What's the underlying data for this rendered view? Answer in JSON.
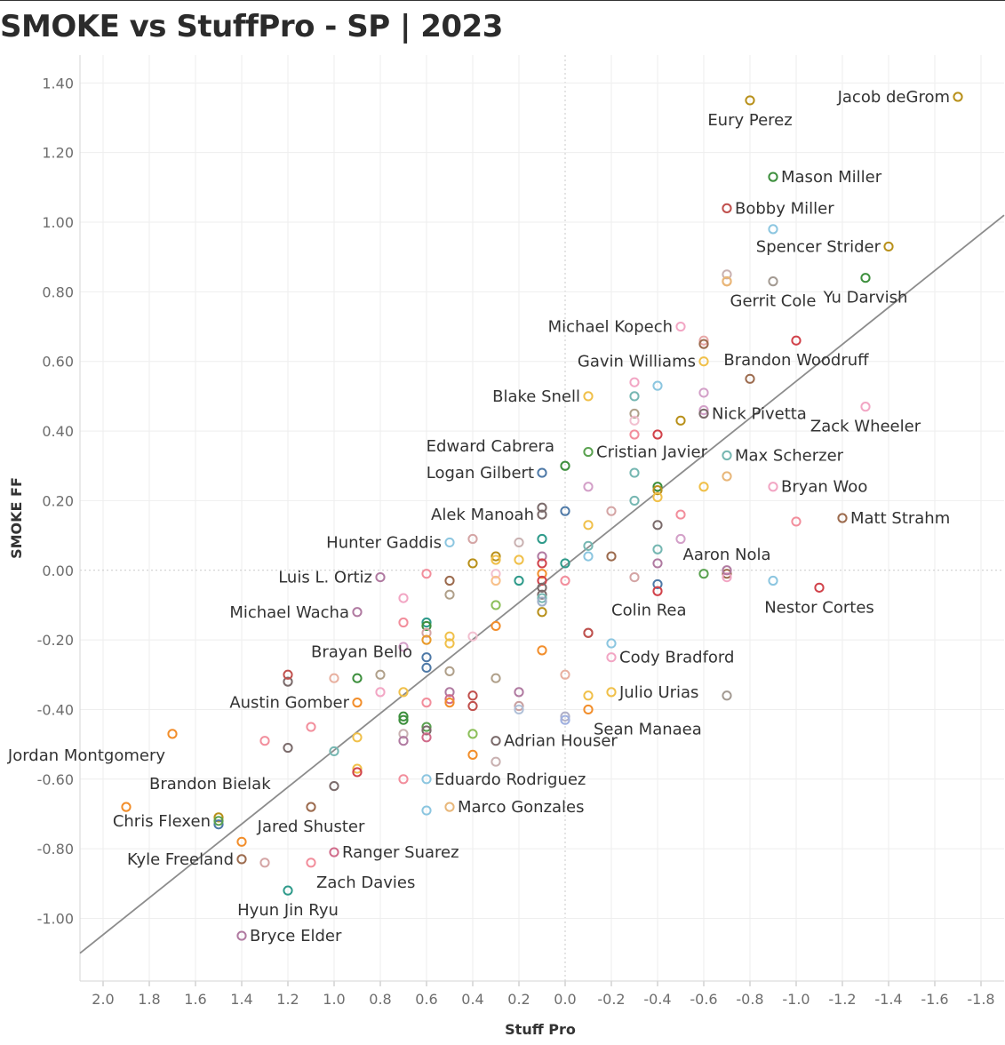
{
  "chart_data": {
    "type": "scatter",
    "title": "SMOKE vs StuffPro - SP | 2023",
    "xlabel": "Stuff Pro",
    "ylabel": "SMOKE FF",
    "x_reversed": true,
    "xlim": [
      2.1,
      -1.9
    ],
    "ylim": [
      -1.18,
      1.48
    ],
    "x_ticks": [
      "2.0",
      "1.8",
      "1.6",
      "1.4",
      "1.2",
      "1.0",
      "0.8",
      "0.6",
      "0.4",
      "0.2",
      "0.0",
      "-0.2",
      "-0.4",
      "-0.6",
      "-0.8",
      "-1.0",
      "-1.2",
      "-1.4",
      "-1.6",
      "-1.8"
    ],
    "y_ticks": [
      "1.40",
      "1.20",
      "1.00",
      "0.80",
      "0.60",
      "0.40",
      "0.20",
      "0.00",
      "-0.20",
      "-0.40",
      "-0.60",
      "-0.80",
      "-1.00"
    ],
    "gridlines": true,
    "trendline": {
      "x1": 2.1,
      "y1": -1.1,
      "x2": -1.9,
      "y2": 1.02
    },
    "labeled_points": [
      {
        "name": "Jacob deGrom",
        "x": -1.7,
        "y": 1.36,
        "color": "#b8901a",
        "label_pos": "left"
      },
      {
        "name": "Eury Perez",
        "x": -0.8,
        "y": 1.35,
        "color": "#b8901a",
        "label_pos": "below"
      },
      {
        "name": "Mason Miller",
        "x": -0.9,
        "y": 1.13,
        "color": "#3d8f3d",
        "label_pos": "right"
      },
      {
        "name": "Bobby Miller",
        "x": -0.7,
        "y": 1.04,
        "color": "#c0504d",
        "label_pos": "right"
      },
      {
        "name": "Spencer Strider",
        "x": -1.4,
        "y": 0.93,
        "color": "#b8901a",
        "label_pos": "left"
      },
      {
        "name": "Yu Darvish",
        "x": -1.3,
        "y": 0.84,
        "color": "#3d8f3d",
        "label_pos": "below"
      },
      {
        "name": "Gerrit Cole",
        "x": -0.9,
        "y": 0.83,
        "color": "#a39a92",
        "label_pos": "below"
      },
      {
        "name": "Michael Kopech",
        "x": -0.5,
        "y": 0.7,
        "color": "#f2a6c4",
        "label_pos": "left"
      },
      {
        "name": "Brandon Woodruff",
        "x": -1.0,
        "y": 0.66,
        "color": "#d1424a",
        "label_pos": "below"
      },
      {
        "name": "Gavin Williams",
        "x": -0.6,
        "y": 0.6,
        "color": "#f0c04a",
        "label_pos": "left"
      },
      {
        "name": "Blake Snell",
        "x": -0.1,
        "y": 0.5,
        "color": "#f0c04a",
        "label_pos": "left"
      },
      {
        "name": "Nick Pivetta",
        "x": -0.6,
        "y": 0.45,
        "color": "#7a6a6a",
        "label_pos": "right"
      },
      {
        "name": "Zack Wheeler",
        "x": -1.3,
        "y": 0.47,
        "color": "#f2a6c4",
        "label_pos": "below"
      },
      {
        "name": "Edward Cabrera",
        "x": 0.0,
        "y": 0.3,
        "color": "#3d8f3d",
        "label_pos": "above-left"
      },
      {
        "name": "Cristian Javier",
        "x": -0.1,
        "y": 0.34,
        "color": "#59a14f",
        "label_pos": "right"
      },
      {
        "name": "Max Scherzer",
        "x": -0.7,
        "y": 0.33,
        "color": "#76b7b2",
        "label_pos": "right"
      },
      {
        "name": "Logan Gilbert",
        "x": 0.1,
        "y": 0.28,
        "color": "#4e79a7",
        "label_pos": "left"
      },
      {
        "name": "Bryan Woo",
        "x": -0.9,
        "y": 0.24,
        "color": "#f2a6c4",
        "label_pos": "right"
      },
      {
        "name": "Alek Manoah",
        "x": 0.1,
        "y": 0.16,
        "color": "#7a6a6a",
        "label_pos": "left"
      },
      {
        "name": "Matt Strahm",
        "x": -1.2,
        "y": 0.15,
        "color": "#9c6b4e",
        "label_pos": "right"
      },
      {
        "name": "Hunter Gaddis",
        "x": 0.5,
        "y": 0.08,
        "color": "#8cc6e0",
        "label_pos": "left"
      },
      {
        "name": "Aaron Nola",
        "x": -0.7,
        "y": 0.0,
        "color": "#b07aa1",
        "label_pos": "above"
      },
      {
        "name": "Luis L. Ortiz",
        "x": 0.8,
        "y": -0.02,
        "color": "#b07aa1",
        "label_pos": "left"
      },
      {
        "name": "Nestor Cortes",
        "x": -1.1,
        "y": -0.05,
        "color": "#d1424a",
        "label_pos": "below"
      },
      {
        "name": "Michael Wacha",
        "x": 0.9,
        "y": -0.12,
        "color": "#b07aa1",
        "label_pos": "left"
      },
      {
        "name": "Colin Rea",
        "x": -0.1,
        "y": -0.18,
        "color": "#c0504d",
        "label_pos": "above-right"
      },
      {
        "name": "Cody Bradford",
        "x": -0.2,
        "y": -0.25,
        "color": "#f2a6c4",
        "label_pos": "right"
      },
      {
        "name": "Brayan Bello",
        "x": 1.2,
        "y": -0.3,
        "color": "#c0504d",
        "label_pos": "above-right"
      },
      {
        "name": "Julio Urias",
        "x": -0.2,
        "y": -0.35,
        "color": "#f0c04a",
        "label_pos": "right"
      },
      {
        "name": "Austin Gomber",
        "x": 0.9,
        "y": -0.38,
        "color": "#f28e2b",
        "label_pos": "left"
      },
      {
        "name": "Sean Manaea",
        "x": -0.1,
        "y": -0.4,
        "color": "#f28e2b",
        "label_pos": "below-right"
      },
      {
        "name": "Adrian Houser",
        "x": 0.3,
        "y": -0.49,
        "color": "#7a6a6a",
        "label_pos": "right"
      },
      {
        "name": "Jordan Montgomery",
        "x": 1.7,
        "y": -0.47,
        "color": "#f28e2b",
        "label_pos": "below-left"
      },
      {
        "name": "Eduardo Rodriguez",
        "x": 0.6,
        "y": -0.6,
        "color": "#8cc6e0",
        "label_pos": "right"
      },
      {
        "name": "Brandon Bielak",
        "x": 1.9,
        "y": -0.68,
        "color": "#f28e2b",
        "label_pos": "above-right"
      },
      {
        "name": "Marco Gonzales",
        "x": 0.5,
        "y": -0.68,
        "color": "#e8b77a",
        "label_pos": "right"
      },
      {
        "name": "Chris Flexen",
        "x": 1.5,
        "y": -0.72,
        "color": "#59a14f",
        "label_pos": "left"
      },
      {
        "name": "Jared Shuster",
        "x": 1.1,
        "y": -0.68,
        "color": "#9c6b4e",
        "label_pos": "below"
      },
      {
        "name": "Ranger Suarez",
        "x": 1.0,
        "y": -0.81,
        "color": "#d06b8a",
        "label_pos": "right"
      },
      {
        "name": "Kyle Freeland",
        "x": 1.4,
        "y": -0.83,
        "color": "#9c6b4e",
        "label_pos": "left"
      },
      {
        "name": "Zach Davies",
        "x": 1.1,
        "y": -0.84,
        "color": "#f28e9c",
        "label_pos": "below-right"
      },
      {
        "name": "Hyun Jin Ryu",
        "x": 1.2,
        "y": -0.92,
        "color": "#2e9a8a",
        "label_pos": "below"
      },
      {
        "name": "Bryce Elder",
        "x": 1.4,
        "y": -1.05,
        "color": "#b07aa1",
        "label_pos": "right"
      }
    ],
    "unlabeled_points": [
      {
        "x": -0.9,
        "y": 0.98,
        "color": "#8cc6e0"
      },
      {
        "x": -0.7,
        "y": 0.85,
        "color": "#c9b1b1"
      },
      {
        "x": -0.7,
        "y": 0.83,
        "color": "#f28e2b"
      },
      {
        "x": -0.7,
        "y": 0.83,
        "color": "#e8b77a"
      },
      {
        "x": -0.6,
        "y": 0.66,
        "color": "#e8a8a8"
      },
      {
        "x": -0.6,
        "y": 0.65,
        "color": "#9c6b4e"
      },
      {
        "x": -0.8,
        "y": 0.55,
        "color": "#9c6b4e"
      },
      {
        "x": -0.3,
        "y": 0.54,
        "color": "#f2a6c4"
      },
      {
        "x": -0.4,
        "y": 0.53,
        "color": "#8cc6e0"
      },
      {
        "x": -0.3,
        "y": 0.5,
        "color": "#76b7b2"
      },
      {
        "x": -0.6,
        "y": 0.51,
        "color": "#d3a0c8"
      },
      {
        "x": -0.3,
        "y": 0.45,
        "color": "#b0a08a"
      },
      {
        "x": -0.3,
        "y": 0.43,
        "color": "#f2c0d0"
      },
      {
        "x": -0.5,
        "y": 0.43,
        "color": "#b8901a"
      },
      {
        "x": -0.6,
        "y": 0.46,
        "color": "#d3a0c8"
      },
      {
        "x": -0.3,
        "y": 0.39,
        "color": "#f28e9c"
      },
      {
        "x": -0.4,
        "y": 0.39,
        "color": "#d1424a"
      },
      {
        "x": -0.3,
        "y": 0.28,
        "color": "#76b7b2"
      },
      {
        "x": -0.7,
        "y": 0.27,
        "color": "#e8b77a"
      },
      {
        "x": -0.1,
        "y": 0.24,
        "color": "#d3a0c8"
      },
      {
        "x": -0.4,
        "y": 0.24,
        "color": "#3d8f3d"
      },
      {
        "x": -0.4,
        "y": 0.23,
        "color": "#b8901a"
      },
      {
        "x": -0.6,
        "y": 0.24,
        "color": "#f0c04a"
      },
      {
        "x": -0.4,
        "y": 0.21,
        "color": "#f0c04a"
      },
      {
        "x": -0.3,
        "y": 0.2,
        "color": "#76b7b2"
      },
      {
        "x": 0.1,
        "y": 0.18,
        "color": "#7a6a6a"
      },
      {
        "x": 0.0,
        "y": 0.17,
        "color": "#4e79a7"
      },
      {
        "x": -0.2,
        "y": 0.17,
        "color": "#d4a5a5"
      },
      {
        "x": -0.5,
        "y": 0.16,
        "color": "#f28e9c"
      },
      {
        "x": -1.0,
        "y": 0.14,
        "color": "#f28e9c"
      },
      {
        "x": -0.1,
        "y": 0.13,
        "color": "#f0c04a"
      },
      {
        "x": -0.4,
        "y": 0.13,
        "color": "#7a6a6a"
      },
      {
        "x": 0.4,
        "y": 0.09,
        "color": "#d4a5a5"
      },
      {
        "x": 0.2,
        "y": 0.08,
        "color": "#c9b1b1"
      },
      {
        "x": 0.1,
        "y": 0.09,
        "color": "#2e9a8a"
      },
      {
        "x": -0.5,
        "y": 0.09,
        "color": "#d3a0c8"
      },
      {
        "x": -0.1,
        "y": 0.07,
        "color": "#76b7b2"
      },
      {
        "x": -0.4,
        "y": 0.06,
        "color": "#76b7b2"
      },
      {
        "x": -0.2,
        "y": 0.04,
        "color": "#9c6b4e"
      },
      {
        "x": -0.1,
        "y": 0.04,
        "color": "#8cc6e0"
      },
      {
        "x": 0.3,
        "y": 0.04,
        "color": "#b8901a"
      },
      {
        "x": 0.3,
        "y": 0.03,
        "color": "#f0c04a"
      },
      {
        "x": 0.4,
        "y": 0.02,
        "color": "#b8901a"
      },
      {
        "x": 0.2,
        "y": 0.03,
        "color": "#f0c04a"
      },
      {
        "x": 0.1,
        "y": 0.04,
        "color": "#b07aa1"
      },
      {
        "x": 0.1,
        "y": 0.02,
        "color": "#d1424a"
      },
      {
        "x": 0.0,
        "y": 0.02,
        "color": "#2e9a8a"
      },
      {
        "x": -0.4,
        "y": 0.02,
        "color": "#b07aa1"
      },
      {
        "x": 0.6,
        "y": -0.01,
        "color": "#f28e9c"
      },
      {
        "x": 0.3,
        "y": -0.01,
        "color": "#f2c0d0"
      },
      {
        "x": 0.1,
        "y": -0.01,
        "color": "#f28e2b"
      },
      {
        "x": -0.3,
        "y": -0.02,
        "color": "#d4a5a5"
      },
      {
        "x": -0.6,
        "y": -0.01,
        "color": "#59a14f"
      },
      {
        "x": -0.7,
        "y": -0.01,
        "color": "#9c6b4e"
      },
      {
        "x": -0.7,
        "y": -0.02,
        "color": "#f2a6c4"
      },
      {
        "x": 0.5,
        "y": -0.03,
        "color": "#9c6b4e"
      },
      {
        "x": 0.3,
        "y": -0.03,
        "color": "#f8c08a"
      },
      {
        "x": 0.2,
        "y": -0.03,
        "color": "#2e9a8a"
      },
      {
        "x": 0.1,
        "y": -0.03,
        "color": "#d1424a"
      },
      {
        "x": 0.0,
        "y": -0.03,
        "color": "#f28e9c"
      },
      {
        "x": -0.4,
        "y": -0.04,
        "color": "#4e79a7"
      },
      {
        "x": -0.9,
        "y": -0.03,
        "color": "#8cc6e0"
      },
      {
        "x": 0.1,
        "y": -0.05,
        "color": "#7a6a6a"
      },
      {
        "x": -0.4,
        "y": -0.06,
        "color": "#d1424a"
      },
      {
        "x": 0.1,
        "y": -0.07,
        "color": "#7a6a6a"
      },
      {
        "x": 0.5,
        "y": -0.07,
        "color": "#b0a08a"
      },
      {
        "x": 0.1,
        "y": -0.08,
        "color": "#76b7b2"
      },
      {
        "x": 0.7,
        "y": -0.08,
        "color": "#f2a6c4"
      },
      {
        "x": 0.1,
        "y": -0.09,
        "color": "#9fb0c8"
      },
      {
        "x": 0.3,
        "y": -0.1,
        "color": "#8cbf5a"
      },
      {
        "x": 0.1,
        "y": -0.12,
        "color": "#b8901a"
      },
      {
        "x": 0.7,
        "y": -0.15,
        "color": "#f28e9c"
      },
      {
        "x": 0.6,
        "y": -0.15,
        "color": "#2e9a8a"
      },
      {
        "x": 0.6,
        "y": -0.16,
        "color": "#3d8f3d"
      },
      {
        "x": 0.3,
        "y": -0.16,
        "color": "#f28e2b"
      },
      {
        "x": 0.6,
        "y": -0.18,
        "color": "#d4a5a5"
      },
      {
        "x": -0.1,
        "y": -0.18,
        "color": "#a39a92"
      },
      {
        "x": 0.4,
        "y": -0.19,
        "color": "#f2c0d0"
      },
      {
        "x": 0.5,
        "y": -0.19,
        "color": "#f0c04a"
      },
      {
        "x": 0.6,
        "y": -0.2,
        "color": "#e89a2a"
      },
      {
        "x": 0.5,
        "y": -0.21,
        "color": "#f0c04a"
      },
      {
        "x": -0.2,
        "y": -0.21,
        "color": "#8cc6e0"
      },
      {
        "x": 0.7,
        "y": -0.22,
        "color": "#d3a0c8"
      },
      {
        "x": 0.1,
        "y": -0.23,
        "color": "#f28e2b"
      },
      {
        "x": 0.6,
        "y": -0.25,
        "color": "#4e79a7"
      },
      {
        "x": 0.6,
        "y": -0.28,
        "color": "#4e79a7"
      },
      {
        "x": 0.5,
        "y": -0.29,
        "color": "#b0a08a"
      },
      {
        "x": 0.8,
        "y": -0.3,
        "color": "#b0a08a"
      },
      {
        "x": 0.0,
        "y": -0.3,
        "color": "#e8b0a0"
      },
      {
        "x": 1.0,
        "y": -0.31,
        "color": "#e8b0a0"
      },
      {
        "x": 0.9,
        "y": -0.31,
        "color": "#3d8f3d"
      },
      {
        "x": 0.3,
        "y": -0.31,
        "color": "#b0a08a"
      },
      {
        "x": 1.2,
        "y": -0.32,
        "color": "#7a6a6a"
      },
      {
        "x": 0.7,
        "y": -0.35,
        "color": "#f0c04a"
      },
      {
        "x": 0.8,
        "y": -0.35,
        "color": "#f2a6c4"
      },
      {
        "x": 0.5,
        "y": -0.35,
        "color": "#b07aa1"
      },
      {
        "x": 0.2,
        "y": -0.35,
        "color": "#b07aa1"
      },
      {
        "x": -0.1,
        "y": -0.36,
        "color": "#f0c04a"
      },
      {
        "x": -0.7,
        "y": -0.36,
        "color": "#a39a92"
      },
      {
        "x": 0.4,
        "y": -0.36,
        "color": "#c0504d"
      },
      {
        "x": 0.5,
        "y": -0.37,
        "color": "#d06b8a"
      },
      {
        "x": 0.5,
        "y": -0.38,
        "color": "#f28e2b"
      },
      {
        "x": 0.6,
        "y": -0.38,
        "color": "#f28e9c"
      },
      {
        "x": 0.4,
        "y": -0.39,
        "color": "#c0504d"
      },
      {
        "x": 0.2,
        "y": -0.39,
        "color": "#c9a0a0"
      },
      {
        "x": 0.2,
        "y": -0.4,
        "color": "#b0c0d8"
      },
      {
        "x": 0.0,
        "y": -0.42,
        "color": "#b0b0c8"
      },
      {
        "x": 0.7,
        "y": -0.42,
        "color": "#3d8f3d"
      },
      {
        "x": 0.7,
        "y": -0.43,
        "color": "#3d8f3d"
      },
      {
        "x": 0.0,
        "y": -0.43,
        "color": "#9fb0e0"
      },
      {
        "x": 0.6,
        "y": -0.45,
        "color": "#59a14f"
      },
      {
        "x": 0.6,
        "y": -0.46,
        "color": "#7a6a6a"
      },
      {
        "x": 1.1,
        "y": -0.45,
        "color": "#f28e9c"
      },
      {
        "x": 0.7,
        "y": -0.47,
        "color": "#c9b1b1"
      },
      {
        "x": 0.4,
        "y": -0.47,
        "color": "#8cbf5a"
      },
      {
        "x": 0.6,
        "y": -0.48,
        "color": "#d06b8a"
      },
      {
        "x": 0.9,
        "y": -0.48,
        "color": "#f0c04a"
      },
      {
        "x": 1.3,
        "y": -0.49,
        "color": "#f28e9c"
      },
      {
        "x": 0.7,
        "y": -0.49,
        "color": "#b07aa1"
      },
      {
        "x": 1.2,
        "y": -0.51,
        "color": "#7a6a6a"
      },
      {
        "x": 1.0,
        "y": -0.52,
        "color": "#76b7b2"
      },
      {
        "x": 0.4,
        "y": -0.53,
        "color": "#f28e2b"
      },
      {
        "x": 0.3,
        "y": -0.55,
        "color": "#c9b1b1"
      },
      {
        "x": 0.9,
        "y": -0.57,
        "color": "#f0c04a"
      },
      {
        "x": 0.9,
        "y": -0.58,
        "color": "#d1424a"
      },
      {
        "x": 0.7,
        "y": -0.6,
        "color": "#f28e9c"
      },
      {
        "x": 1.0,
        "y": -0.62,
        "color": "#7a6a6a"
      },
      {
        "x": 0.6,
        "y": -0.69,
        "color": "#8cc6e0"
      },
      {
        "x": 1.5,
        "y": -0.71,
        "color": "#b8901a"
      },
      {
        "x": 1.5,
        "y": -0.73,
        "color": "#4e79a7"
      },
      {
        "x": 1.4,
        "y": -0.78,
        "color": "#f28e2b"
      },
      {
        "x": 1.3,
        "y": -0.84,
        "color": "#d4a5a5"
      }
    ]
  }
}
